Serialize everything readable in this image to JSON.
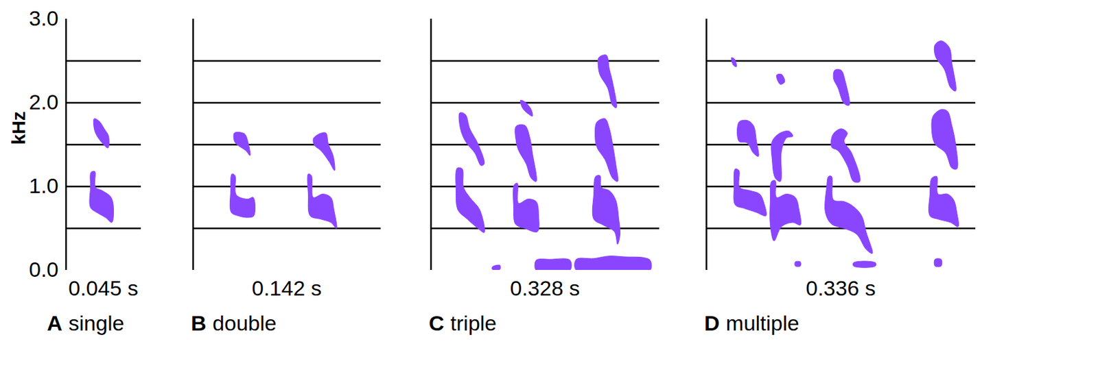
{
  "chart_data": [
    {
      "type": "spectrogram",
      "panel": "A",
      "title": "single",
      "xlabel": "0.045 s",
      "ylabel": "kHz",
      "xlim": [
        0,
        0.12
      ],
      "ylim": [
        0,
        3
      ],
      "yticks": [
        0,
        1,
        2,
        3
      ],
      "tick_labels": "y",
      "grid": true,
      "grid_lines": [
        0.5,
        1,
        1.5,
        2,
        2.5
      ],
      "color": "#8a46ff",
      "shapes": [
        [
          [
            0.045,
            1.81
          ],
          [
            0.053,
            1.78
          ],
          [
            0.061,
            1.69
          ],
          [
            0.068,
            1.6
          ],
          [
            0.067,
            1.46
          ],
          [
            0.059,
            1.51
          ],
          [
            0.049,
            1.61
          ],
          [
            0.045,
            1.69
          ]
        ],
        [
          [
            0.04,
            1.17
          ],
          [
            0.046,
            1.18
          ],
          [
            0.047,
            0.99
          ],
          [
            0.058,
            0.95
          ],
          [
            0.072,
            0.87
          ],
          [
            0.076,
            0.72
          ],
          [
            0.073,
            0.57
          ],
          [
            0.063,
            0.63
          ],
          [
            0.049,
            0.69
          ],
          [
            0.039,
            0.75
          ],
          [
            0.039,
            0.99
          ]
        ]
      ]
    },
    {
      "type": "spectrogram",
      "panel": "B",
      "title": "double",
      "xlabel": "0.142 s",
      "xlim": [
        0,
        0.3
      ],
      "ylim": [
        0,
        3
      ],
      "tick_labels": false,
      "grid": true,
      "grid_lines": [
        0.5,
        1,
        1.5,
        2,
        2.5
      ],
      "color": "#8a46ff",
      "shapes": [
        [
          [
            0.066,
            1.64
          ],
          [
            0.082,
            1.63
          ],
          [
            0.088,
            1.52
          ],
          [
            0.091,
            1.37
          ],
          [
            0.084,
            1.43
          ],
          [
            0.072,
            1.49
          ],
          [
            0.066,
            1.54
          ]
        ],
        [
          [
            0.062,
            1.15
          ],
          [
            0.067,
            1.13
          ],
          [
            0.069,
            0.9
          ],
          [
            0.087,
            0.85
          ],
          [
            0.096,
            0.87
          ],
          [
            0.097,
            0.65
          ],
          [
            0.087,
            0.63
          ],
          [
            0.072,
            0.65
          ],
          [
            0.061,
            0.69
          ],
          [
            0.06,
            0.95
          ]
        ],
        [
          [
            0.192,
            1.57
          ],
          [
            0.202,
            1.63
          ],
          [
            0.212,
            1.64
          ],
          [
            0.216,
            1.51
          ],
          [
            0.224,
            1.36
          ],
          [
            0.226,
            1.19
          ],
          [
            0.217,
            1.3
          ],
          [
            0.204,
            1.43
          ],
          [
            0.194,
            1.49
          ]
        ],
        [
          [
            0.184,
            1.15
          ],
          [
            0.189,
            1.13
          ],
          [
            0.192,
            0.87
          ],
          [
            0.207,
            0.91
          ],
          [
            0.22,
            0.87
          ],
          [
            0.225,
            0.72
          ],
          [
            0.229,
            0.5
          ],
          [
            0.22,
            0.57
          ],
          [
            0.204,
            0.61
          ],
          [
            0.187,
            0.65
          ],
          [
            0.184,
            0.9
          ]
        ]
      ]
    },
    {
      "type": "spectrogram",
      "panel": "C",
      "title": "triple",
      "xlabel": "0.328 s",
      "xlim": [
        0,
        0.365
      ],
      "ylim": [
        0,
        3
      ],
      "tick_labels": false,
      "grid": true,
      "grid_lines": [
        0.5,
        1,
        1.5,
        2,
        2.5
      ],
      "color": "#8a46ff",
      "shapes": [
        [
          [
            0.046,
            1.88
          ],
          [
            0.055,
            1.86
          ],
          [
            0.062,
            1.69
          ],
          [
            0.075,
            1.51
          ],
          [
            0.085,
            1.27
          ],
          [
            0.08,
            1.25
          ],
          [
            0.07,
            1.4
          ],
          [
            0.055,
            1.54
          ],
          [
            0.047,
            1.69
          ]
        ],
        [
          [
            0.042,
            1.22
          ],
          [
            0.05,
            1.21
          ],
          [
            0.052,
            0.99
          ],
          [
            0.062,
            0.87
          ],
          [
            0.078,
            0.72
          ],
          [
            0.085,
            0.45
          ],
          [
            0.075,
            0.5
          ],
          [
            0.058,
            0.61
          ],
          [
            0.043,
            0.72
          ],
          [
            0.04,
            0.95
          ]
        ],
        [
          [
            0.136,
            1.72
          ],
          [
            0.15,
            1.73
          ],
          [
            0.158,
            1.58
          ],
          [
            0.162,
            1.4
          ],
          [
            0.168,
            1.06
          ],
          [
            0.16,
            1.1
          ],
          [
            0.152,
            1.27
          ],
          [
            0.14,
            1.43
          ],
          [
            0.136,
            1.54
          ]
        ],
        [
          [
            0.133,
            1.02
          ],
          [
            0.138,
            1.04
          ],
          [
            0.14,
            0.8
          ],
          [
            0.155,
            0.85
          ],
          [
            0.168,
            0.82
          ],
          [
            0.172,
            0.65
          ],
          [
            0.17,
            0.46
          ],
          [
            0.15,
            0.5
          ],
          [
            0.135,
            0.55
          ],
          [
            0.132,
            0.76
          ]
        ],
        [
          [
            0.143,
            2.03
          ],
          [
            0.15,
            2.01
          ],
          [
            0.16,
            1.92
          ],
          [
            0.162,
            1.84
          ],
          [
            0.155,
            1.87
          ],
          [
            0.146,
            1.94
          ]
        ],
        [
          [
            0.268,
            2.54
          ],
          [
            0.28,
            2.57
          ],
          [
            0.285,
            2.4
          ],
          [
            0.29,
            2.25
          ],
          [
            0.296,
            1.94
          ],
          [
            0.29,
            1.97
          ],
          [
            0.282,
            2.18
          ],
          [
            0.27,
            2.33
          ],
          [
            0.267,
            2.44
          ]
        ],
        [
          [
            0.265,
            1.77
          ],
          [
            0.278,
            1.81
          ],
          [
            0.285,
            1.69
          ],
          [
            0.29,
            1.51
          ],
          [
            0.295,
            1.28
          ],
          [
            0.298,
            1.06
          ],
          [
            0.29,
            1.1
          ],
          [
            0.278,
            1.32
          ],
          [
            0.265,
            1.47
          ],
          [
            0.262,
            1.62
          ]
        ],
        [
          [
            0.263,
            1.12
          ],
          [
            0.27,
            1.13
          ],
          [
            0.272,
            0.99
          ],
          [
            0.285,
            0.95
          ],
          [
            0.295,
            0.84
          ],
          [
            0.3,
            0.61
          ],
          [
            0.302,
            0.43
          ],
          [
            0.298,
            0.31
          ],
          [
            0.293,
            0.46
          ],
          [
            0.275,
            0.54
          ],
          [
            0.26,
            0.61
          ],
          [
            0.26,
            0.91
          ]
        ],
        [
          [
            0.168,
            0
          ],
          [
            0.168,
            0.12
          ],
          [
            0.19,
            0.13
          ],
          [
            0.222,
            0.12
          ],
          [
            0.222,
            0
          ]
        ],
        [
          [
            0.232,
            0
          ],
          [
            0.232,
            0.13
          ],
          [
            0.26,
            0.14
          ],
          [
            0.285,
            0.17
          ],
          [
            0.31,
            0.16
          ],
          [
            0.34,
            0.15
          ],
          [
            0.35,
            0.12
          ],
          [
            0.35,
            0
          ]
        ],
        [
          [
            0.098,
            0.04
          ],
          [
            0.11,
            0.06
          ],
          [
            0.11,
            0.01
          ],
          [
            0.098,
            0.01
          ]
        ]
      ]
    },
    {
      "type": "spectrogram",
      "panel": "D",
      "title": "multiple",
      "xlabel": "0.336 s",
      "xlim": [
        0,
        0.43
      ],
      "ylim": [
        0,
        3
      ],
      "tick_labels": false,
      "grid": true,
      "grid_lines": [
        0.5,
        1,
        1.5,
        2,
        2.5
      ],
      "color": "#8a46ff",
      "shapes": [
        [
          [
            0.04,
            2.54
          ],
          [
            0.045,
            2.52
          ],
          [
            0.048,
            2.43
          ],
          [
            0.043,
            2.45
          ]
        ],
        [
          [
            0.052,
            1.77
          ],
          [
            0.065,
            1.79
          ],
          [
            0.075,
            1.73
          ],
          [
            0.08,
            1.54
          ],
          [
            0.083,
            1.36
          ],
          [
            0.075,
            1.4
          ],
          [
            0.065,
            1.52
          ],
          [
            0.052,
            1.54
          ]
        ],
        [
          [
            0.046,
            1.21
          ],
          [
            0.052,
            1.19
          ],
          [
            0.053,
            0.99
          ],
          [
            0.07,
            0.95
          ],
          [
            0.085,
            0.91
          ],
          [
            0.092,
            0.8
          ],
          [
            0.095,
            0.65
          ],
          [
            0.08,
            0.69
          ],
          [
            0.06,
            0.74
          ],
          [
            0.046,
            0.78
          ],
          [
            0.044,
            0.99
          ]
        ],
        [
          [
            0.112,
            2.33
          ],
          [
            0.12,
            2.34
          ],
          [
            0.125,
            2.25
          ],
          [
            0.118,
            2.22
          ]
        ],
        [
          [
            0.105,
            1.54
          ],
          [
            0.118,
            1.64
          ],
          [
            0.132,
            1.66
          ],
          [
            0.138,
            1.6
          ],
          [
            0.128,
            1.58
          ],
          [
            0.12,
            1.43
          ],
          [
            0.118,
            1.06
          ],
          [
            0.11,
            1.1
          ],
          [
            0.105,
            1.32
          ]
        ],
        [
          [
            0.104,
            1.06
          ],
          [
            0.11,
            1.07
          ],
          [
            0.112,
            0.87
          ],
          [
            0.128,
            0.91
          ],
          [
            0.142,
            0.87
          ],
          [
            0.148,
            0.72
          ],
          [
            0.15,
            0.54
          ],
          [
            0.138,
            0.57
          ],
          [
            0.12,
            0.52
          ],
          [
            0.108,
            0.35
          ],
          [
            0.102,
            0.54
          ],
          [
            0.102,
            0.84
          ]
        ],
        [
          [
            0.205,
            2.39
          ],
          [
            0.215,
            2.39
          ],
          [
            0.222,
            2.25
          ],
          [
            0.228,
            1.97
          ],
          [
            0.22,
            1.99
          ],
          [
            0.21,
            2.18
          ],
          [
            0.203,
            2.29
          ]
        ],
        [
          [
            0.202,
            1.62
          ],
          [
            0.215,
            1.69
          ],
          [
            0.225,
            1.64
          ],
          [
            0.22,
            1.54
          ],
          [
            0.232,
            1.4
          ],
          [
            0.245,
            1.06
          ],
          [
            0.235,
            1.06
          ],
          [
            0.225,
            1.25
          ],
          [
            0.21,
            1.43
          ],
          [
            0.2,
            1.47
          ]
        ],
        [
          [
            0.195,
            1.12
          ],
          [
            0.2,
            1.12
          ],
          [
            0.203,
            0.84
          ],
          [
            0.22,
            0.82
          ],
          [
            0.235,
            0.76
          ],
          [
            0.248,
            0.65
          ],
          [
            0.255,
            0.46
          ],
          [
            0.265,
            0.2
          ],
          [
            0.255,
            0.25
          ],
          [
            0.24,
            0.43
          ],
          [
            0.22,
            0.5
          ],
          [
            0.2,
            0.55
          ],
          [
            0.19,
            0.69
          ],
          [
            0.192,
            0.99
          ]
        ],
        [
          [
            0.365,
            2.69
          ],
          [
            0.375,
            2.74
          ],
          [
            0.388,
            2.66
          ],
          [
            0.392,
            2.48
          ],
          [
            0.398,
            2.14
          ],
          [
            0.39,
            2.18
          ],
          [
            0.38,
            2.4
          ],
          [
            0.366,
            2.55
          ]
        ],
        [
          [
            0.362,
            1.84
          ],
          [
            0.375,
            1.92
          ],
          [
            0.385,
            1.9
          ],
          [
            0.392,
            1.73
          ],
          [
            0.398,
            1.51
          ],
          [
            0.4,
            1.21
          ],
          [
            0.392,
            1.22
          ],
          [
            0.382,
            1.4
          ],
          [
            0.365,
            1.51
          ],
          [
            0.36,
            1.66
          ]
        ],
        [
          [
            0.36,
            1.1
          ],
          [
            0.368,
            1.12
          ],
          [
            0.37,
            0.91
          ],
          [
            0.385,
            0.91
          ],
          [
            0.395,
            0.84
          ],
          [
            0.4,
            0.69
          ],
          [
            0.402,
            0.52
          ],
          [
            0.39,
            0.57
          ],
          [
            0.37,
            0.61
          ],
          [
            0.357,
            0.65
          ],
          [
            0.357,
            0.91
          ]
        ],
        [
          [
            0.142,
            0.1
          ],
          [
            0.15,
            0.1
          ],
          [
            0.15,
            0.05
          ],
          [
            0.142,
            0.05
          ]
        ],
        [
          [
            0.235,
            0.09
          ],
          [
            0.27,
            0.09
          ],
          [
            0.27,
            0.05
          ],
          [
            0.235,
            0.05
          ]
        ],
        [
          [
            0.365,
            0.13
          ],
          [
            0.375,
            0.13
          ],
          [
            0.375,
            0.05
          ],
          [
            0.365,
            0.05
          ]
        ]
      ]
    }
  ]
}
